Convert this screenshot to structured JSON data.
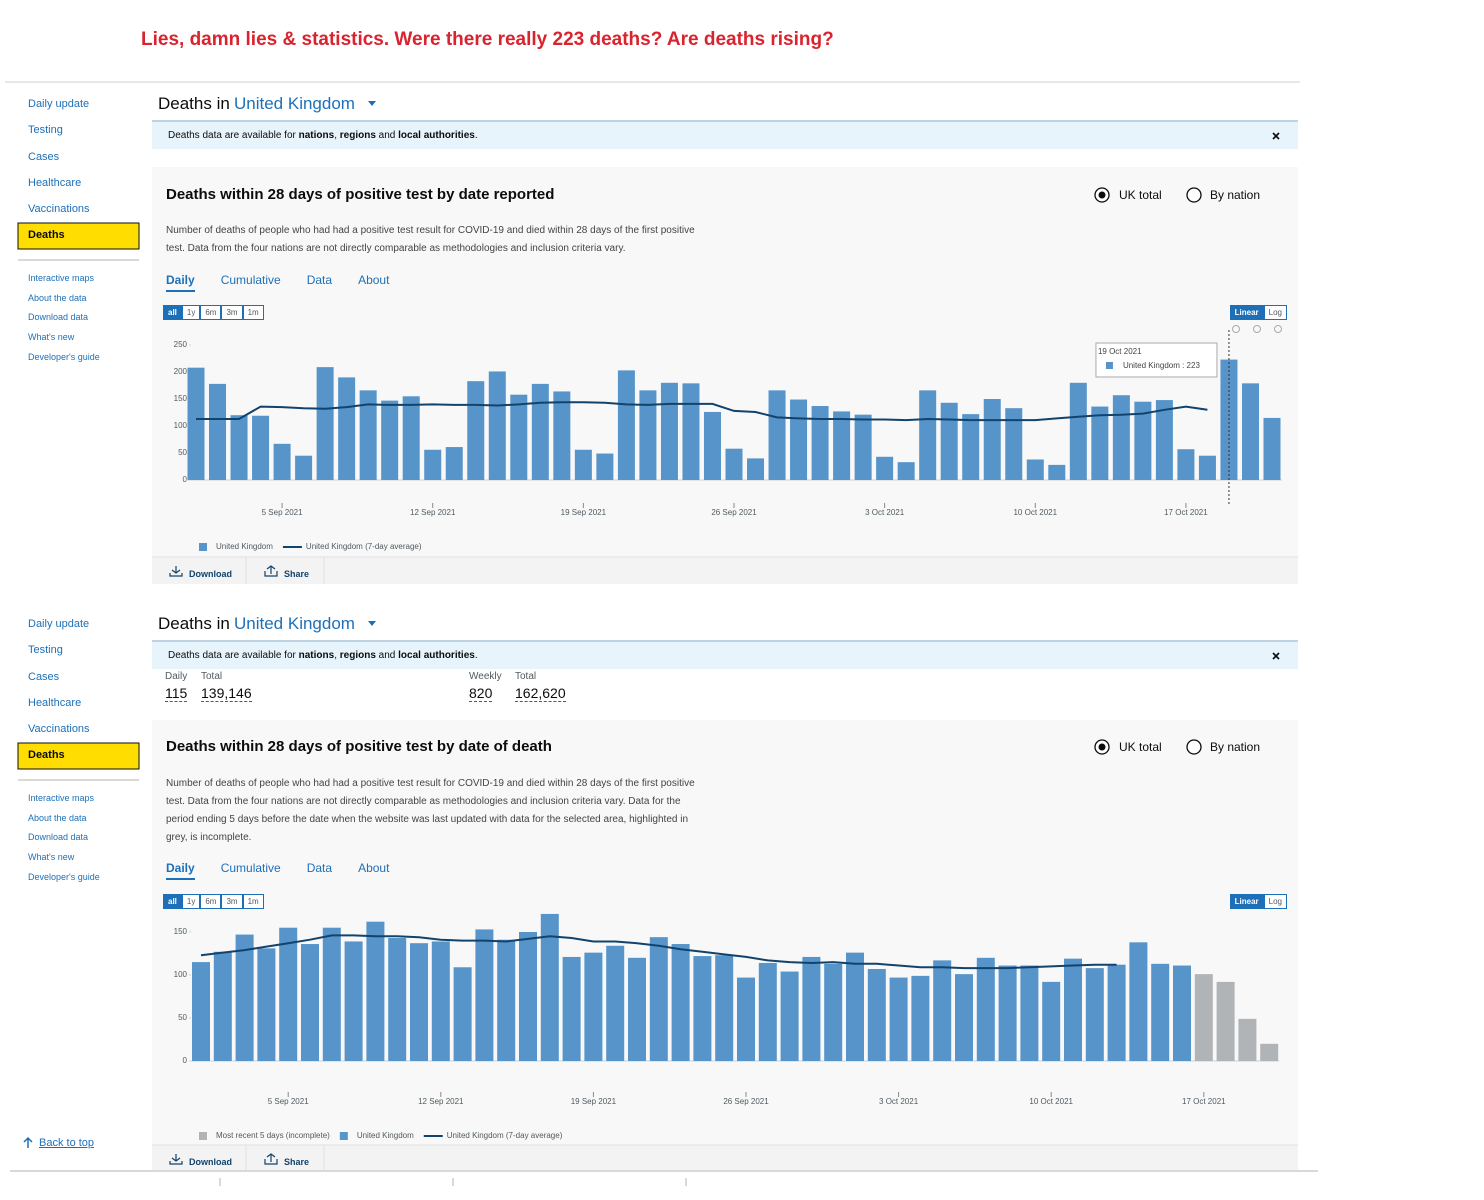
{
  "headline": "Lies, damn lies & statistics.  Were there really 223 deaths? Are deaths rising?",
  "nav": [
    {
      "main": [
        "Daily update",
        "Testing",
        "Cases",
        "Healthcare",
        "Vaccinations",
        "Deaths"
      ],
      "active": "Deaths",
      "secondary": [
        "Interactive maps",
        "About the data",
        "Download data",
        "What's new",
        "Developer's guide"
      ]
    },
    {
      "main": [
        "Daily update",
        "Testing",
        "Cases",
        "Healthcare",
        "Vaccinations",
        "Deaths"
      ],
      "active": "Deaths",
      "secondary": [
        "Interactive maps",
        "About the data",
        "Download data",
        "What's new",
        "Developer's guide"
      ]
    }
  ],
  "back_to_top": "Back to top",
  "panels": [
    {
      "heading": "Deaths in",
      "area": "United Kingdom",
      "banner": [
        {
          "text": "Deaths data are available for ",
          "bold": false
        },
        {
          "text": "nations",
          "bold": true
        },
        {
          "text": ", ",
          "bold": false
        },
        {
          "text": "regions",
          "bold": true
        },
        {
          "text": " and ",
          "bold": false
        },
        {
          "text": "local authorities",
          "bold": true
        },
        {
          "text": ".",
          "bold": false
        }
      ],
      "card_title": "Deaths within 28 days of positive test by date reported",
      "radios": [
        "UK total",
        "By nation"
      ],
      "radio_selected": "UK total",
      "description": [
        "Number of deaths of people who had had a positive test result for COVID-19 and died within 28 days of the first positive",
        "test. Data from the four nations are not directly comparable as methodologies and inclusion criteria vary."
      ],
      "tabs": [
        "Daily",
        "Cumulative",
        "Data",
        "About"
      ],
      "tab_active": "Daily",
      "ranges": [
        "all",
        "1y",
        "6m",
        "3m",
        "1m"
      ],
      "range_active": "all",
      "scales": [
        "Linear",
        "Log"
      ],
      "scale_active": "Linear",
      "actions": [
        "Download",
        "Share"
      ]
    },
    {
      "heading": "Deaths in",
      "area": "United Kingdom",
      "banner": [
        {
          "text": "Deaths data are available for ",
          "bold": false
        },
        {
          "text": "nations",
          "bold": true
        },
        {
          "text": ", ",
          "bold": false
        },
        {
          "text": "regions",
          "bold": true
        },
        {
          "text": " and ",
          "bold": false
        },
        {
          "text": "local authorities",
          "bold": true
        },
        {
          "text": ".",
          "bold": false
        }
      ],
      "summary": [
        {
          "label": "Daily",
          "value": "115"
        },
        {
          "label": "Total",
          "value": "139,146"
        },
        {
          "label": "Weekly",
          "value": "820"
        },
        {
          "label": "Total",
          "value": "162,620"
        }
      ],
      "card_title": "Deaths within 28 days of positive test by date of death",
      "radios": [
        "UK total",
        "By nation"
      ],
      "radio_selected": "UK total",
      "description": [
        "Number of deaths of people who had had a positive test result for COVID-19 and died within 28 days of the first positive",
        "test. Data from the four nations are not directly comparable as methodologies and inclusion criteria vary. Data for the",
        "period ending 5 days before the date when the website was last updated with data for the selected area, highlighted in",
        "grey, is incomplete."
      ],
      "tabs": [
        "Daily",
        "Cumulative",
        "Data",
        "About"
      ],
      "tab_active": "Daily",
      "ranges": [
        "all",
        "1y",
        "6m",
        "3m",
        "1m"
      ],
      "range_active": "all",
      "scales": [
        "Linear",
        "Log"
      ],
      "scale_active": "Linear",
      "actions": [
        "Download",
        "Share"
      ]
    }
  ],
  "chart_data": [
    {
      "type": "bar",
      "categories": [
        "1 Sep 2021",
        "2 Sep 2021",
        "3 Sep 2021",
        "4 Sep 2021",
        "5 Sep 2021",
        "6 Sep 2021",
        "7 Sep 2021",
        "8 Sep 2021",
        "9 Sep 2021",
        "10 Sep 2021",
        "11 Sep 2021",
        "12 Sep 2021",
        "13 Sep 2021",
        "14 Sep 2021",
        "15 Sep 2021",
        "16 Sep 2021",
        "17 Sep 2021",
        "18 Sep 2021",
        "19 Sep 2021",
        "20 Sep 2021",
        "21 Sep 2021",
        "22 Sep 2021",
        "23 Sep 2021",
        "24 Sep 2021",
        "25 Sep 2021",
        "26 Sep 2021",
        "27 Sep 2021",
        "28 Sep 2021",
        "29 Sep 2021",
        "30 Sep 2021",
        "1 Oct 2021",
        "2 Oct 2021",
        "3 Oct 2021",
        "4 Oct 2021",
        "5 Oct 2021",
        "6 Oct 2021",
        "7 Oct 2021",
        "8 Oct 2021",
        "9 Oct 2021",
        "10 Oct 2021",
        "11 Oct 2021",
        "12 Oct 2021",
        "13 Oct 2021",
        "14 Oct 2021",
        "15 Oct 2021",
        "16 Oct 2021",
        "17 Oct 2021",
        "18 Oct 2021",
        "19 Oct 2021",
        "20 Oct 2021",
        "21 Oct 2021"
      ],
      "series": [
        {
          "name": "United Kingdom",
          "type": "bar",
          "color": "#5694ca",
          "values": [
            208,
            178,
            120,
            119,
            67,
            45,
            209,
            190,
            166,
            147,
            155,
            56,
            61,
            183,
            201,
            158,
            178,
            164,
            56,
            49,
            203,
            166,
            180,
            179,
            126,
            58,
            40,
            166,
            149,
            137,
            127,
            121,
            43,
            33,
            166,
            143,
            122,
            150,
            133,
            38,
            28,
            180,
            136,
            157,
            145,
            148,
            57,
            45,
            223,
            179,
            115
          ]
        },
        {
          "name": "United Kingdom (7-day average)",
          "type": "line",
          "color": "#12436d",
          "values": [
            113,
            113,
            113,
            136,
            135,
            133,
            132,
            135,
            140,
            139,
            139,
            140,
            139,
            139,
            138,
            140,
            143,
            144,
            144,
            143,
            140,
            139,
            141,
            141,
            141,
            128,
            126,
            116,
            114,
            113,
            113,
            112,
            112,
            111,
            113,
            112,
            111,
            111,
            111,
            111,
            114,
            117,
            120,
            121,
            123,
            130,
            136,
            130,
            null,
            null,
            null
          ]
        }
      ],
      "xticks": [
        "5 Sep 2021",
        "12 Sep 2021",
        "19 Sep 2021",
        "26 Sep 2021",
        "3 Oct 2021",
        "10 Oct 2021",
        "17 Oct 2021"
      ],
      "ylim": [
        0,
        250
      ],
      "yticks": [
        0,
        50,
        100,
        150,
        200,
        250
      ],
      "grid": false,
      "tooltip": {
        "date": "19 Oct 2021",
        "label": "United Kingdom : 223"
      }
    },
    {
      "type": "bar",
      "categories": [
        "1 Sep 2021",
        "2 Sep 2021",
        "3 Sep 2021",
        "4 Sep 2021",
        "5 Sep 2021",
        "6 Sep 2021",
        "7 Sep 2021",
        "8 Sep 2021",
        "9 Sep 2021",
        "10 Sep 2021",
        "11 Sep 2021",
        "12 Sep 2021",
        "13 Sep 2021",
        "14 Sep 2021",
        "15 Sep 2021",
        "16 Sep 2021",
        "17 Sep 2021",
        "18 Sep 2021",
        "19 Sep 2021",
        "20 Sep 2021",
        "21 Sep 2021",
        "22 Sep 2021",
        "23 Sep 2021",
        "24 Sep 2021",
        "25 Sep 2021",
        "26 Sep 2021",
        "27 Sep 2021",
        "28 Sep 2021",
        "29 Sep 2021",
        "30 Sep 2021",
        "1 Oct 2021",
        "2 Oct 2021",
        "3 Oct 2021",
        "4 Oct 2021",
        "5 Oct 2021",
        "6 Oct 2021",
        "7 Oct 2021",
        "8 Oct 2021",
        "9 Oct 2021",
        "10 Oct 2021",
        "11 Oct 2021",
        "12 Oct 2021",
        "13 Oct 2021",
        "14 Oct 2021",
        "15 Oct 2021",
        "16 Oct 2021",
        "17 Oct 2021",
        "18 Oct 2021",
        "19 Oct 2021",
        "20 Oct 2021"
      ],
      "series": [
        {
          "name": "Most recent 5 days (incomplete)",
          "type": "bar",
          "color": "#b1b4b6",
          "values": [
            null,
            null,
            null,
            null,
            null,
            null,
            null,
            null,
            null,
            null,
            null,
            null,
            null,
            null,
            null,
            null,
            null,
            null,
            null,
            null,
            null,
            null,
            null,
            null,
            null,
            null,
            null,
            null,
            null,
            null,
            null,
            null,
            null,
            null,
            null,
            null,
            null,
            null,
            null,
            null,
            null,
            null,
            null,
            null,
            null,
            null,
            101,
            92,
            49,
            20
          ]
        },
        {
          "name": "United Kingdom",
          "type": "bar",
          "color": "#5694ca",
          "values": [
            115,
            127,
            147,
            131,
            155,
            136,
            155,
            139,
            162,
            143,
            137,
            139,
            109,
            153,
            141,
            150,
            171,
            121,
            126,
            134,
            120,
            144,
            136,
            122,
            123,
            97,
            114,
            104,
            121,
            113,
            126,
            107,
            97,
            99,
            117,
            101,
            120,
            111,
            111,
            92,
            119,
            108,
            112,
            138,
            113,
            111,
            null,
            null,
            null,
            null
          ]
        },
        {
          "name": "United Kingdom (7-day average)",
          "type": "line",
          "color": "#12436d",
          "values": [
            123,
            126,
            129,
            133,
            137,
            141,
            146,
            146,
            145,
            145,
            144,
            141,
            140,
            140,
            139,
            142,
            145,
            143,
            139,
            139,
            137,
            134,
            130,
            127,
            124,
            121,
            117,
            115,
            114,
            115,
            113,
            113,
            111,
            109,
            109,
            108,
            108,
            108,
            109,
            110,
            111,
            112,
            112,
            null,
            null,
            null,
            null,
            null,
            null,
            null
          ]
        }
      ],
      "xticks": [
        "5 Sep 2021",
        "12 Sep 2021",
        "19 Sep 2021",
        "26 Sep 2021",
        "3 Oct 2021",
        "10 Oct 2021",
        "17 Oct 2021"
      ],
      "ylim": [
        0,
        175
      ],
      "yticks": [
        0,
        50,
        100,
        150
      ],
      "grid": false
    }
  ]
}
